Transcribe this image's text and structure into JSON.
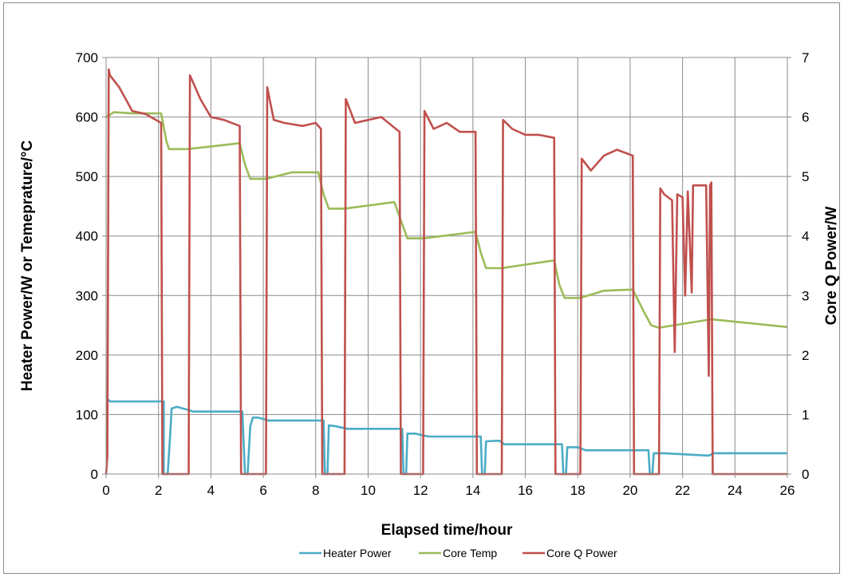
{
  "chart_data": {
    "type": "line",
    "title": "",
    "xlabel": "Elapsed time/hour",
    "ylabel_left": "Heater Power/W or Temeprature/°C",
    "ylabel_right": "Core Q Power/W",
    "xlim": [
      0,
      26
    ],
    "ylim_left": [
      0,
      700
    ],
    "ylim_right": [
      0,
      7
    ],
    "x_ticks": [
      "0",
      "2",
      "4",
      "6",
      "8",
      "10",
      "12",
      "14",
      "16",
      "18",
      "20",
      "22",
      "24",
      "26"
    ],
    "y_left_ticks": [
      "0",
      "100",
      "200",
      "300",
      "400",
      "500",
      "600",
      "700"
    ],
    "y_right_ticks": [
      "0",
      "1",
      "2",
      "3",
      "4",
      "5",
      "6",
      "7"
    ],
    "grid": "vertical and horizontal",
    "legend_position": "bottom",
    "series": [
      {
        "name": "Heater Power",
        "axis": "left",
        "color": "#4bacc6",
        "x": [
          0,
          0.15,
          2.2,
          2.2,
          2.35,
          2.45,
          2.5,
          2.7,
          3.2,
          3.3,
          5.2,
          5.3,
          5.4,
          5.5,
          5.6,
          5.8,
          6.2,
          8.3,
          8.35,
          8.45,
          8.5,
          8.8,
          9.2,
          11.3,
          11.35,
          11.45,
          11.5,
          11.8,
          12.3,
          14.3,
          14.35,
          14.45,
          14.5,
          15.0,
          15.2,
          17.4,
          17.45,
          17.55,
          17.6,
          18.0,
          18.3,
          20.7,
          20.75,
          20.85,
          20.9,
          21.3,
          23.0,
          23.2,
          26
        ],
        "y": [
          128,
          122,
          122,
          0,
          0,
          70,
          110,
          113,
          107,
          105,
          105,
          0,
          0,
          80,
          95,
          95,
          90,
          90,
          0,
          0,
          82,
          80,
          76,
          76,
          0,
          0,
          68,
          68,
          63,
          63,
          0,
          0,
          55,
          56,
          50,
          50,
          0,
          0,
          45,
          45,
          40,
          40,
          0,
          0,
          35,
          35,
          31,
          35,
          35
        ]
      },
      {
        "name": "Core Temp",
        "axis": "left",
        "color": "#9bbb59",
        "x": [
          0,
          0.3,
          1.0,
          2.1,
          2.3,
          2.4,
          3.1,
          5.1,
          5.3,
          5.5,
          6.1,
          7.1,
          8.1,
          8.3,
          8.5,
          9.1,
          11.0,
          11.3,
          11.5,
          12.1,
          14.1,
          14.3,
          14.5,
          15.1,
          17.1,
          17.3,
          17.5,
          18.1,
          19.0,
          20.1,
          20.5,
          20.8,
          21.1,
          22.8,
          23.1,
          26
        ],
        "y": [
          600,
          608,
          606,
          606,
          560,
          546,
          546,
          556,
          520,
          496,
          496,
          507,
          507,
          470,
          446,
          446,
          457,
          420,
          396,
          396,
          407,
          372,
          346,
          346,
          359,
          318,
          296,
          296,
          308,
          310,
          275,
          250,
          246,
          258,
          260,
          247
        ]
      },
      {
        "name": "Core Q Power",
        "axis": "right",
        "color": "#c0504d",
        "x": [
          0,
          0.05,
          0.1,
          0.15,
          0.5,
          1.0,
          1.5,
          2.1,
          2.15,
          3.15,
          3.2,
          3.6,
          4.0,
          4.5,
          5.1,
          5.15,
          6.1,
          6.15,
          6.4,
          6.8,
          7.5,
          8.0,
          8.2,
          8.25,
          9.1,
          9.15,
          9.5,
          10.0,
          10.5,
          11.2,
          11.25,
          12.1,
          12.15,
          12.5,
          13.0,
          13.5,
          14.1,
          14.15,
          15.1,
          15.15,
          15.5,
          16.0,
          16.5,
          17.1,
          17.15,
          18.1,
          18.15,
          18.5,
          19.0,
          19.5,
          20.1,
          20.15,
          21.1,
          21.15,
          21.3,
          21.6,
          21.7,
          21.8,
          22.0,
          22.1,
          22.2,
          22.35,
          22.4,
          22.5,
          22.9,
          23.0,
          23.05,
          23.1,
          23.15,
          26
        ],
        "y": [
          0,
          0.3,
          6.8,
          6.7,
          6.5,
          6.1,
          6.05,
          5.9,
          0,
          0,
          6.7,
          6.3,
          6.0,
          5.95,
          5.85,
          0,
          0,
          6.5,
          5.95,
          5.9,
          5.85,
          5.9,
          5.8,
          0,
          0,
          6.3,
          5.9,
          5.95,
          6.0,
          5.75,
          0,
          0,
          6.1,
          5.8,
          5.9,
          5.75,
          5.75,
          0,
          0,
          5.95,
          5.8,
          5.7,
          5.7,
          5.65,
          0,
          0,
          5.3,
          5.1,
          5.35,
          5.45,
          5.35,
          0,
          0,
          4.8,
          4.7,
          4.6,
          2.05,
          4.7,
          4.65,
          3.0,
          4.75,
          3.05,
          4.85,
          4.85,
          4.85,
          1.65,
          4.85,
          4.9,
          0,
          0
        ]
      }
    ]
  }
}
